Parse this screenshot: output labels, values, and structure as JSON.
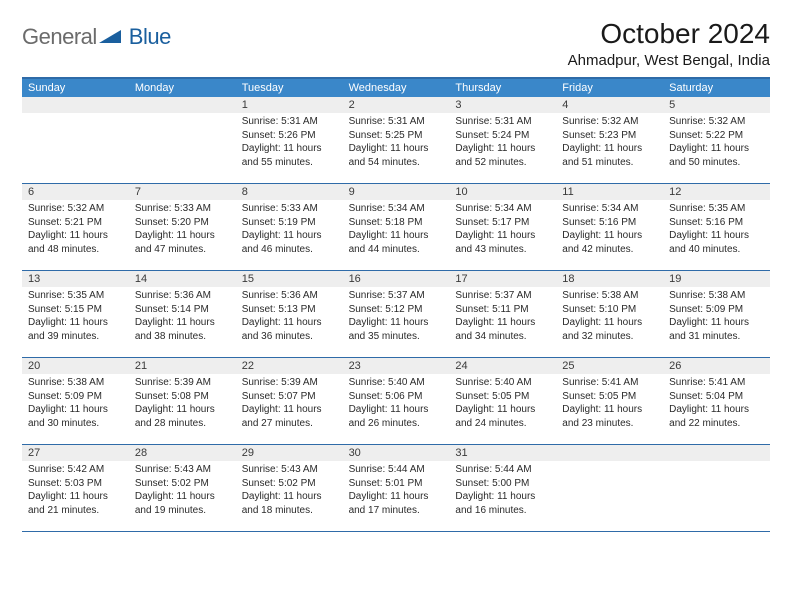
{
  "brand": {
    "word1": "General",
    "word2": "Blue"
  },
  "title": "October 2024",
  "location": "Ahmadpur, West Bengal, India",
  "colors": {
    "header_bg": "#3a87c9",
    "border": "#2f6ba8",
    "daynum_bg": "#eeeeee",
    "logo_gray": "#6b6b6b",
    "logo_blue": "#1a5f9e"
  },
  "typography": {
    "title_fontsize": 28,
    "location_fontsize": 15,
    "dow_fontsize": 11,
    "daynum_fontsize": 11,
    "body_fontsize": 10
  },
  "days_of_week": [
    "Sunday",
    "Monday",
    "Tuesday",
    "Wednesday",
    "Thursday",
    "Friday",
    "Saturday"
  ],
  "weeks": [
    [
      {
        "n": "",
        "sr": "",
        "ss": "",
        "dl": ""
      },
      {
        "n": "",
        "sr": "",
        "ss": "",
        "dl": ""
      },
      {
        "n": "1",
        "sr": "5:31 AM",
        "ss": "5:26 PM",
        "dl": "11 hours and 55 minutes."
      },
      {
        "n": "2",
        "sr": "5:31 AM",
        "ss": "5:25 PM",
        "dl": "11 hours and 54 minutes."
      },
      {
        "n": "3",
        "sr": "5:31 AM",
        "ss": "5:24 PM",
        "dl": "11 hours and 52 minutes."
      },
      {
        "n": "4",
        "sr": "5:32 AM",
        "ss": "5:23 PM",
        "dl": "11 hours and 51 minutes."
      },
      {
        "n": "5",
        "sr": "5:32 AM",
        "ss": "5:22 PM",
        "dl": "11 hours and 50 minutes."
      }
    ],
    [
      {
        "n": "6",
        "sr": "5:32 AM",
        "ss": "5:21 PM",
        "dl": "11 hours and 48 minutes."
      },
      {
        "n": "7",
        "sr": "5:33 AM",
        "ss": "5:20 PM",
        "dl": "11 hours and 47 minutes."
      },
      {
        "n": "8",
        "sr": "5:33 AM",
        "ss": "5:19 PM",
        "dl": "11 hours and 46 minutes."
      },
      {
        "n": "9",
        "sr": "5:34 AM",
        "ss": "5:18 PM",
        "dl": "11 hours and 44 minutes."
      },
      {
        "n": "10",
        "sr": "5:34 AM",
        "ss": "5:17 PM",
        "dl": "11 hours and 43 minutes."
      },
      {
        "n": "11",
        "sr": "5:34 AM",
        "ss": "5:16 PM",
        "dl": "11 hours and 42 minutes."
      },
      {
        "n": "12",
        "sr": "5:35 AM",
        "ss": "5:16 PM",
        "dl": "11 hours and 40 minutes."
      }
    ],
    [
      {
        "n": "13",
        "sr": "5:35 AM",
        "ss": "5:15 PM",
        "dl": "11 hours and 39 minutes."
      },
      {
        "n": "14",
        "sr": "5:36 AM",
        "ss": "5:14 PM",
        "dl": "11 hours and 38 minutes."
      },
      {
        "n": "15",
        "sr": "5:36 AM",
        "ss": "5:13 PM",
        "dl": "11 hours and 36 minutes."
      },
      {
        "n": "16",
        "sr": "5:37 AM",
        "ss": "5:12 PM",
        "dl": "11 hours and 35 minutes."
      },
      {
        "n": "17",
        "sr": "5:37 AM",
        "ss": "5:11 PM",
        "dl": "11 hours and 34 minutes."
      },
      {
        "n": "18",
        "sr": "5:38 AM",
        "ss": "5:10 PM",
        "dl": "11 hours and 32 minutes."
      },
      {
        "n": "19",
        "sr": "5:38 AM",
        "ss": "5:09 PM",
        "dl": "11 hours and 31 minutes."
      }
    ],
    [
      {
        "n": "20",
        "sr": "5:38 AM",
        "ss": "5:09 PM",
        "dl": "11 hours and 30 minutes."
      },
      {
        "n": "21",
        "sr": "5:39 AM",
        "ss": "5:08 PM",
        "dl": "11 hours and 28 minutes."
      },
      {
        "n": "22",
        "sr": "5:39 AM",
        "ss": "5:07 PM",
        "dl": "11 hours and 27 minutes."
      },
      {
        "n": "23",
        "sr": "5:40 AM",
        "ss": "5:06 PM",
        "dl": "11 hours and 26 minutes."
      },
      {
        "n": "24",
        "sr": "5:40 AM",
        "ss": "5:05 PM",
        "dl": "11 hours and 24 minutes."
      },
      {
        "n": "25",
        "sr": "5:41 AM",
        "ss": "5:05 PM",
        "dl": "11 hours and 23 minutes."
      },
      {
        "n": "26",
        "sr": "5:41 AM",
        "ss": "5:04 PM",
        "dl": "11 hours and 22 minutes."
      }
    ],
    [
      {
        "n": "27",
        "sr": "5:42 AM",
        "ss": "5:03 PM",
        "dl": "11 hours and 21 minutes."
      },
      {
        "n": "28",
        "sr": "5:43 AM",
        "ss": "5:02 PM",
        "dl": "11 hours and 19 minutes."
      },
      {
        "n": "29",
        "sr": "5:43 AM",
        "ss": "5:02 PM",
        "dl": "11 hours and 18 minutes."
      },
      {
        "n": "30",
        "sr": "5:44 AM",
        "ss": "5:01 PM",
        "dl": "11 hours and 17 minutes."
      },
      {
        "n": "31",
        "sr": "5:44 AM",
        "ss": "5:00 PM",
        "dl": "11 hours and 16 minutes."
      },
      {
        "n": "",
        "sr": "",
        "ss": "",
        "dl": ""
      },
      {
        "n": "",
        "sr": "",
        "ss": "",
        "dl": ""
      }
    ]
  ],
  "labels": {
    "sunrise": "Sunrise:",
    "sunset": "Sunset:",
    "daylight": "Daylight:"
  }
}
